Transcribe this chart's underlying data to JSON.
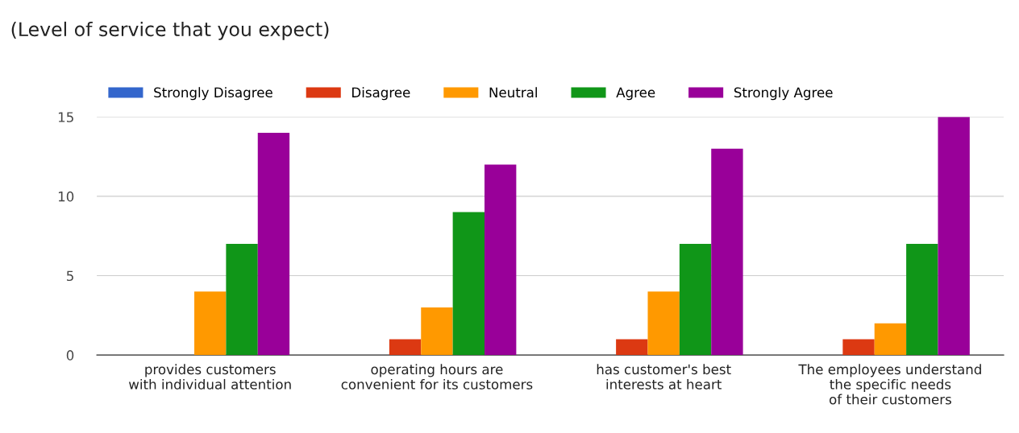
{
  "chart_data": {
    "type": "bar",
    "title": "(Level of service that you expect)",
    "categories": [
      "provides customers\nwith individual attention",
      "operating hours are\nconvenient for its customers",
      "has customer's best\ninterests at heart",
      "The employees understand\nthe specific needs\nof their customers"
    ],
    "series": [
      {
        "name": "Strongly Disagree",
        "color": "#3366cc",
        "values": [
          0,
          0,
          0,
          0
        ]
      },
      {
        "name": "Disagree",
        "color": "#dc3912",
        "values": [
          0,
          1,
          1,
          1
        ]
      },
      {
        "name": "Neutral",
        "color": "#ff9900",
        "values": [
          4,
          3,
          4,
          2
        ]
      },
      {
        "name": "Agree",
        "color": "#109618",
        "values": [
          7,
          9,
          7,
          7
        ]
      },
      {
        "name": "Strongly Agree",
        "color": "#990099",
        "values": [
          14,
          12,
          13,
          15
        ]
      }
    ],
    "ylim": [
      0,
      15
    ],
    "yticks": [
      0,
      5,
      10,
      15
    ],
    "grid": "y",
    "legend": "top left"
  }
}
